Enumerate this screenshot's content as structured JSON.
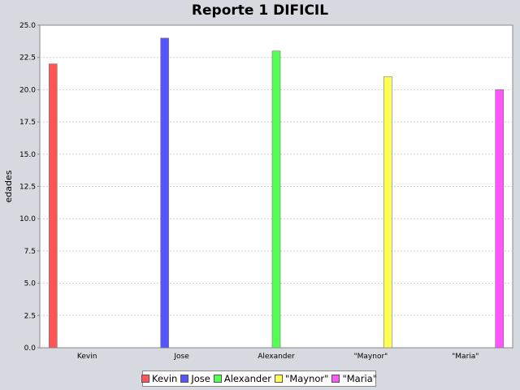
{
  "chart_data": {
    "type": "bar",
    "title": "Reporte 1 DIFICIL",
    "xlabel": "",
    "ylabel": "edades",
    "ylim": [
      0,
      25
    ],
    "y_ticks": [
      "0.0",
      "2.5",
      "5.0",
      "7.5",
      "10.0",
      "12.5",
      "15.0",
      "17.5",
      "20.0",
      "22.5",
      "25.0"
    ],
    "categories": [
      "Kevin",
      "Jose",
      "Alexander",
      "\"Maynor\"",
      "\"Maria\""
    ],
    "series": [
      {
        "name": "Kevin",
        "color": "#ff5555",
        "values": [
          22,
          null,
          null,
          null,
          null
        ]
      },
      {
        "name": "Jose",
        "color": "#5555ff",
        "values": [
          null,
          24,
          null,
          null,
          null
        ]
      },
      {
        "name": "Alexander",
        "color": "#55ff55",
        "values": [
          null,
          null,
          23,
          null,
          null
        ]
      },
      {
        "name": "\"Maynor\"",
        "color": "#ffff55",
        "values": [
          null,
          null,
          null,
          21,
          null
        ]
      },
      {
        "name": "\"Maria\"",
        "color": "#ff55ff",
        "values": [
          null,
          null,
          null,
          null,
          20
        ]
      }
    ],
    "grid": true,
    "legend_position": "bottom"
  }
}
